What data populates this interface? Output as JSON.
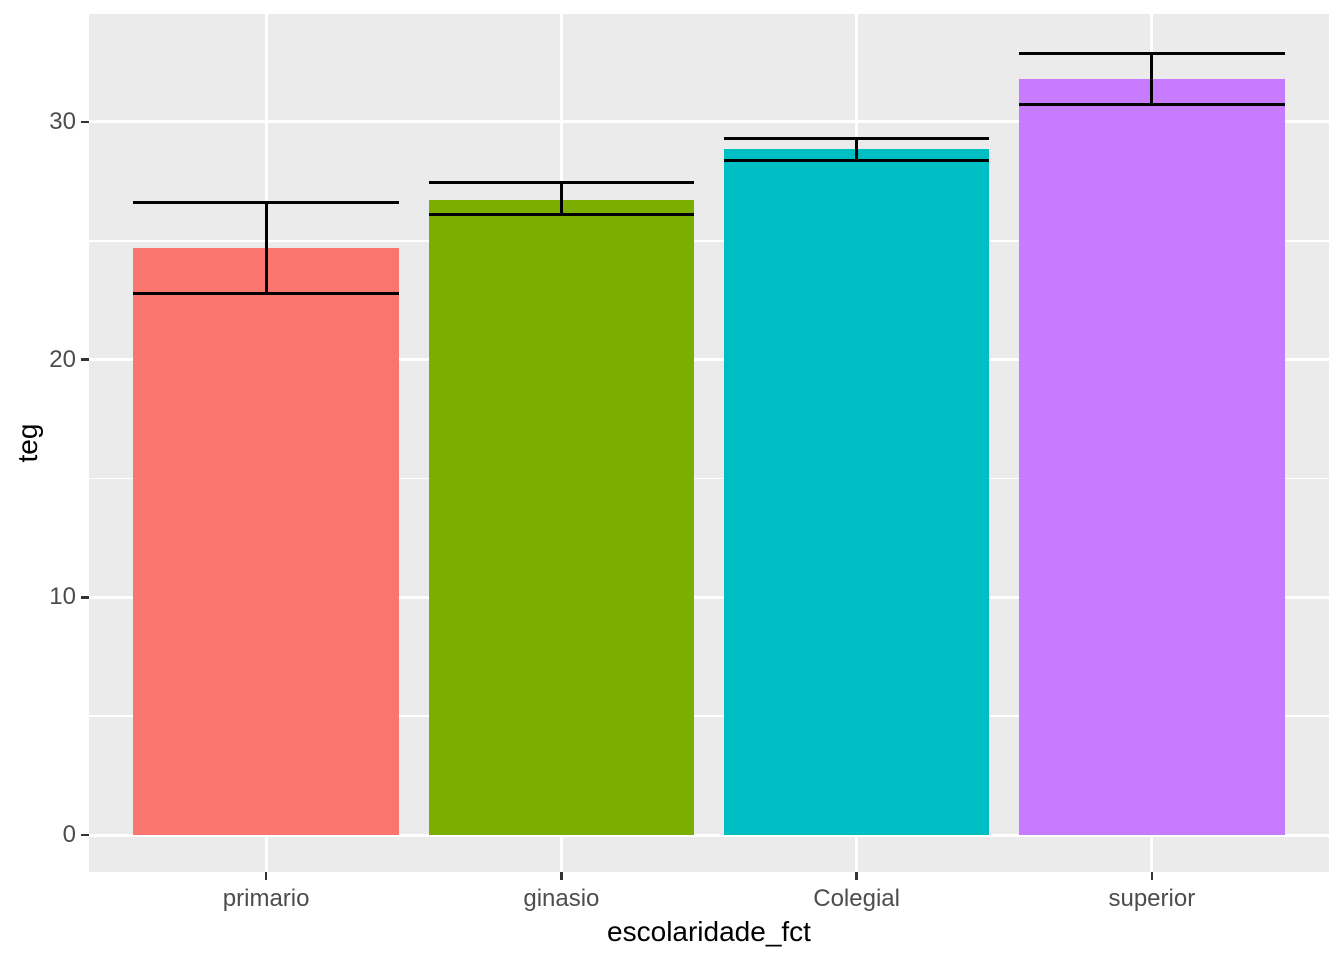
{
  "chart_data": {
    "type": "bar",
    "title": "",
    "xlabel": "escolaridade_fct",
    "ylabel": "teg",
    "categories": [
      "primario",
      "ginasio",
      "Colegial",
      "superior"
    ],
    "values": [
      24.7,
      26.7,
      28.85,
      31.8
    ],
    "error_low": [
      22.8,
      26.1,
      28.4,
      30.75
    ],
    "error_high": [
      26.6,
      27.45,
      29.3,
      32.9
    ],
    "bar_colors": [
      "#F8766D",
      "#7CAE00",
      "#00BFC4",
      "#C77CFF"
    ],
    "y_axis": {
      "major_ticks": [
        0,
        10,
        20,
        30
      ],
      "minor_ticks": [
        5,
        15,
        25
      ],
      "range": [
        -1.65,
        34.55
      ]
    },
    "x_axis": {
      "tick_labels": [
        "primario",
        "ginasio",
        "Colegial",
        "superior"
      ]
    },
    "legend": "none",
    "grid": "horizontal major+minor, vertical major at category centers",
    "style": {
      "figure_bg": "#FFFFFF",
      "panel_bg": "#EBEBEB",
      "grid_color": "#FFFFFF",
      "errorbar_color": "#000000",
      "tick_label_color": "#4D4D4D",
      "tick_mark_color": "#333333",
      "axis_title_color": "#000000"
    }
  }
}
